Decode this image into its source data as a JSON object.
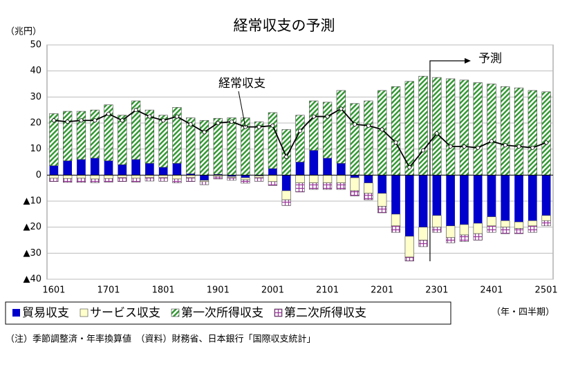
{
  "chart_data": {
    "type": "bar",
    "title": "経常収支の予測",
    "y_unit": "（兆円）",
    "x_unit": "（年・四半期）",
    "note": "（注）季節調整済・年率換算値　（資料）財務省、日本銀行「国際収支統計」",
    "forecast_label": "予測",
    "categories": [
      "1601",
      null,
      null,
      null,
      "1701",
      null,
      null,
      null,
      "1801",
      null,
      null,
      null,
      "1901",
      null,
      null,
      null,
      "2001",
      null,
      null,
      null,
      "2101",
      null,
      null,
      null,
      "2201",
      null,
      null,
      null,
      "2301",
      null,
      null,
      null,
      "2401",
      null,
      null,
      null,
      "2501"
    ],
    "ylim": [
      -40,
      50
    ],
    "yticks": [
      50,
      40,
      30,
      20,
      10,
      0,
      {
        "value": -10,
        "label": "▲10"
      },
      {
        "value": -20,
        "label": "▲20"
      },
      {
        "value": -30,
        "label": "▲30"
      },
      {
        "value": -40,
        "label": "▲40"
      }
    ],
    "grid": true,
    "legend": "bottom",
    "series": [
      {
        "name": "貿易収支",
        "color": "#0000cc",
        "values": [
          3.6,
          5.5,
          6,
          6.5,
          5.5,
          4,
          6,
          4.5,
          3,
          4.5,
          0.5,
          -2,
          0.3,
          -0.5,
          -1,
          -0.3,
          2.5,
          -6,
          5,
          9.5,
          6.5,
          4.5,
          -1,
          -3,
          -7,
          -15,
          -23.5,
          -20,
          -15.5,
          -19.5,
          -19,
          -18.5,
          -16,
          -17.5,
          -18,
          -17.5,
          -15.5
        ]
      },
      {
        "name": "サービス収支",
        "color": "#ffffcc",
        "values": [
          -1.2,
          -1.3,
          -1.2,
          -1.5,
          -1.3,
          -1,
          -1.2,
          -1,
          -1,
          -1.5,
          -1,
          -0.5,
          -0.5,
          -0.5,
          -0.8,
          -0.7,
          -2.5,
          -3.5,
          -3,
          -3,
          -3,
          -3,
          -5,
          -4,
          -5,
          -4.5,
          -8,
          -5,
          -4.5,
          -4.5,
          -4,
          -4,
          -3.5,
          -2.5,
          -2.5,
          -2,
          -2
        ]
      },
      {
        "name": "第一次所得収支",
        "color": "#339933",
        "values": [
          20,
          19,
          18.5,
          18.5,
          21.5,
          19,
          22.5,
          20.5,
          20,
          21.5,
          21.5,
          21,
          21.5,
          22,
          22,
          20.5,
          21.5,
          17.5,
          18,
          19,
          21.5,
          28,
          27.5,
          28.5,
          32.5,
          34,
          36,
          38,
          37.5,
          37,
          36.5,
          35.5,
          35,
          34,
          33.5,
          32.5,
          32
        ]
      },
      {
        "name": "第二次所得収支",
        "color": "#993399",
        "values": [
          -1.3,
          -1.5,
          -1.6,
          -1.4,
          -1.4,
          -1.5,
          -1.5,
          -1.3,
          -1.4,
          -1.5,
          -1.5,
          -1.2,
          -1,
          -1,
          -1.3,
          -1.4,
          -1.5,
          -2.2,
          -3.5,
          -2.5,
          -2.5,
          -2.5,
          -2,
          -2.5,
          -2.5,
          -2.5,
          -1.5,
          -2.5,
          -2,
          -2,
          -2.5,
          -2.5,
          -2.5,
          -2.5,
          -2,
          -2.5,
          -2
        ]
      },
      {
        "name": "経常収支",
        "type": "line",
        "color": "#000000",
        "values": [
          21,
          20.5,
          21,
          21,
          23.5,
          21,
          25,
          22.5,
          21,
          22.5,
          19.5,
          16.5,
          20,
          20.5,
          18.5,
          18.5,
          19,
          7,
          17,
          22.5,
          22.5,
          25.5,
          19.5,
          19,
          17.5,
          12.5,
          3,
          9.5,
          16,
          11,
          11,
          10.5,
          13,
          11.5,
          11,
          10.5,
          12.5
        ]
      }
    ]
  }
}
